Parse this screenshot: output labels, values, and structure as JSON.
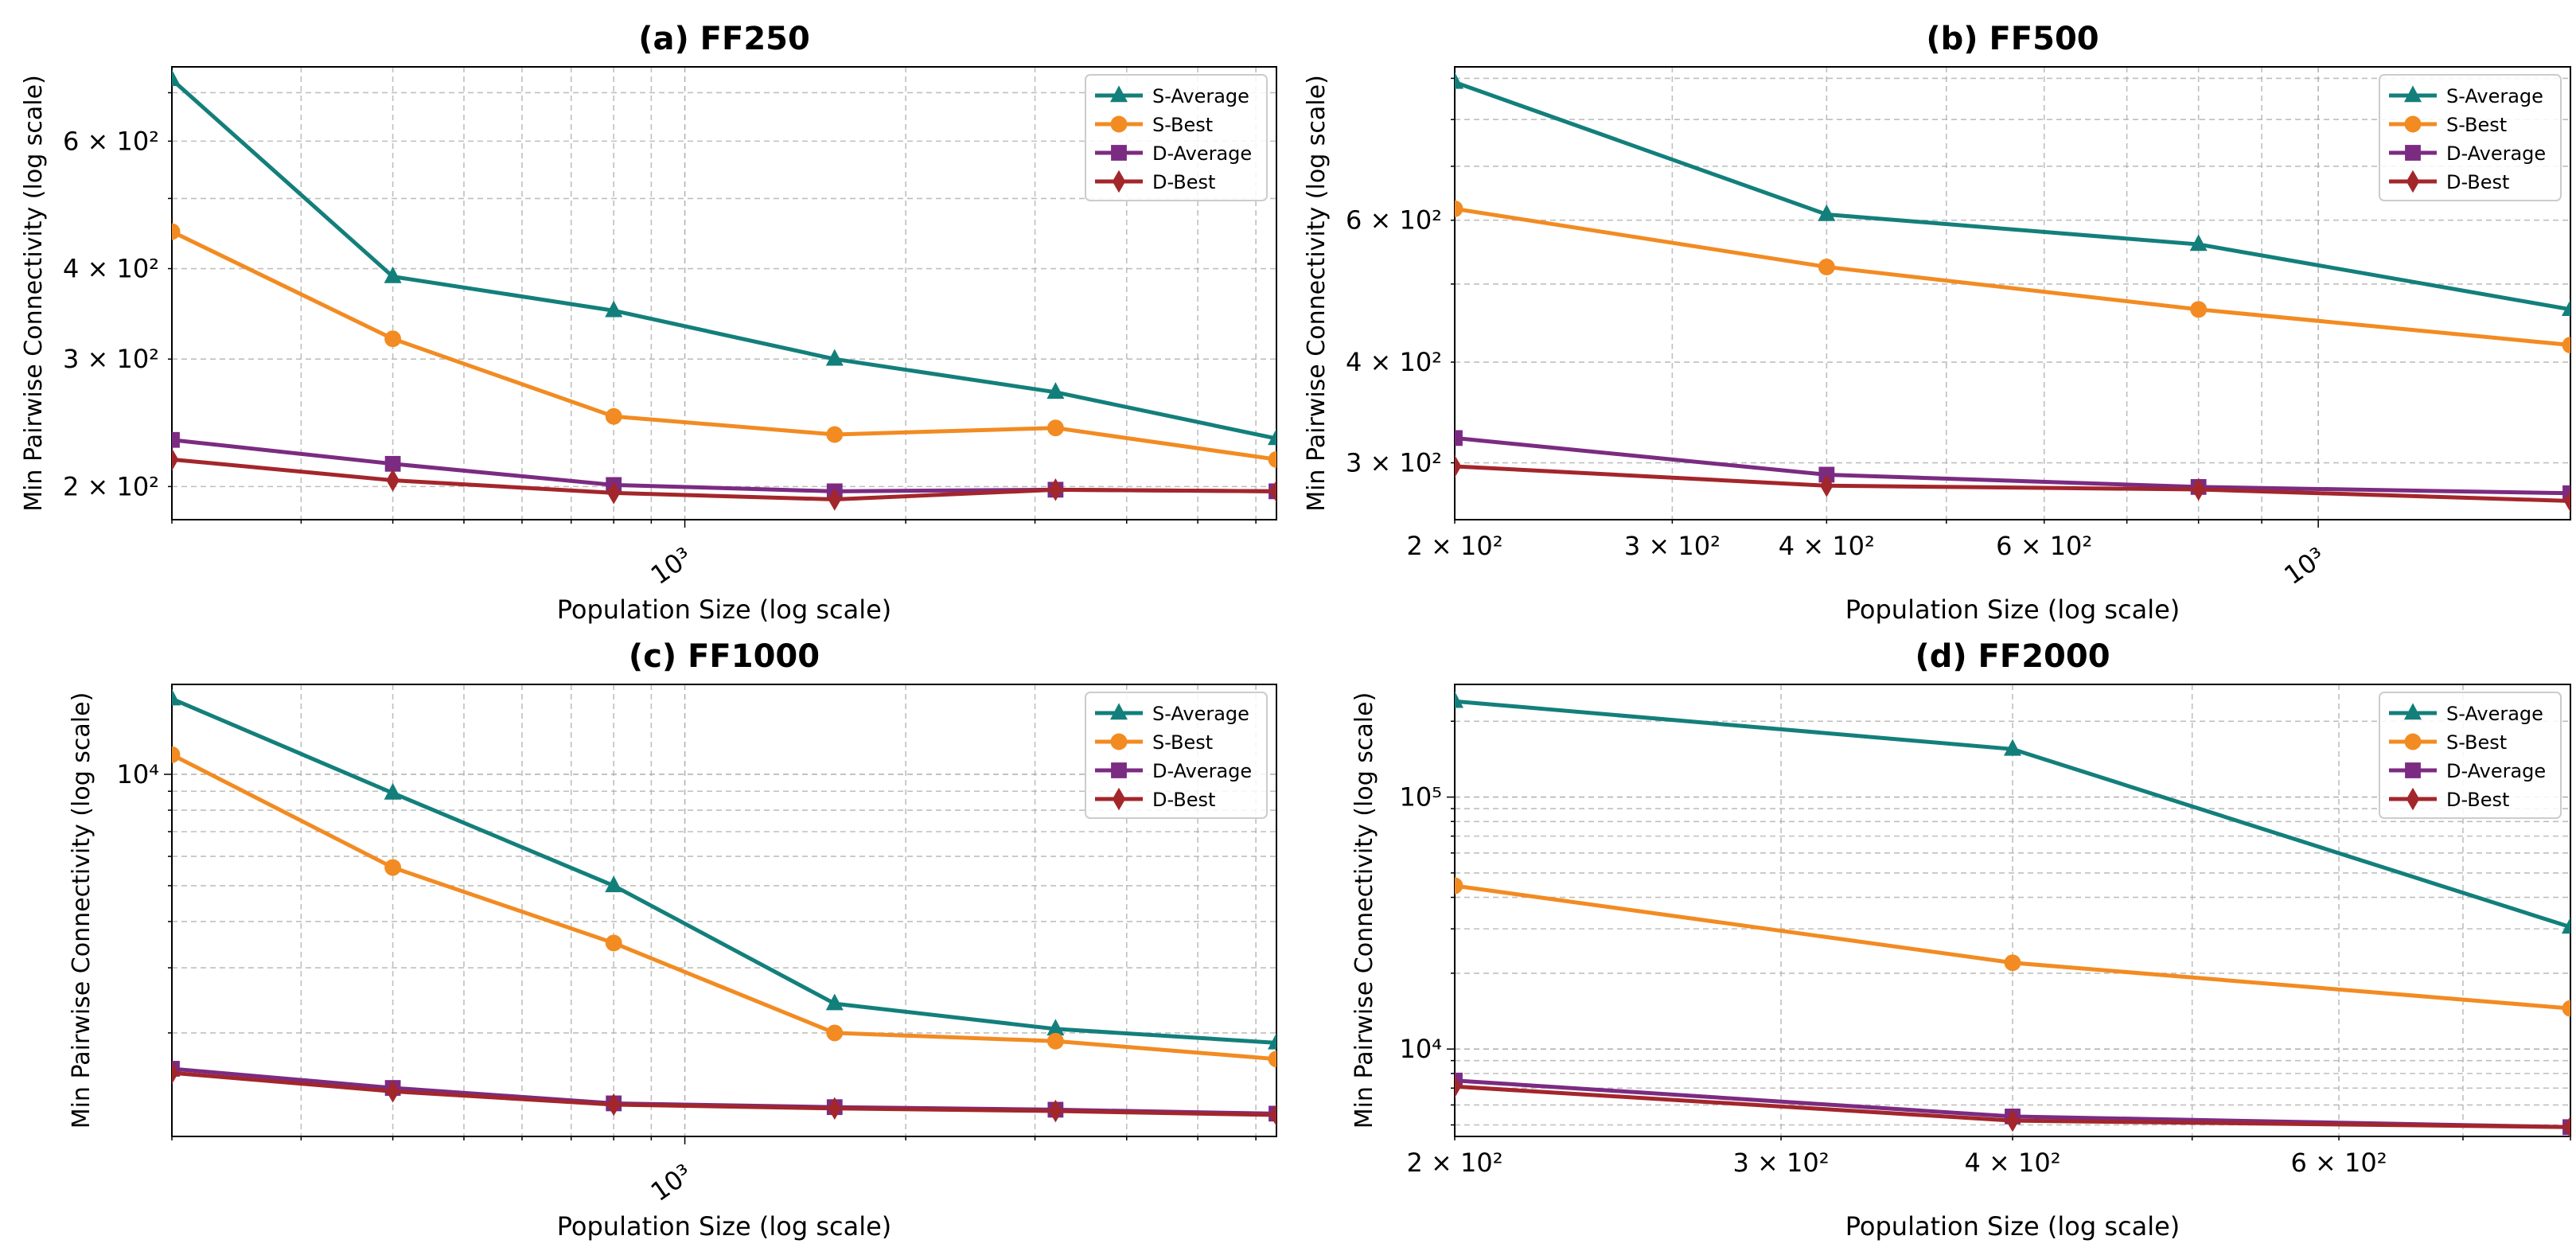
{
  "colors": {
    "s_average": "#137f7b",
    "s_best": "#f28b22",
    "d_average": "#7b2b81",
    "d_best": "#a3262b",
    "grid": "#b0b0b0",
    "axis": "#000000"
  },
  "chart_data": [
    {
      "type": "line",
      "title": "(a) FF250",
      "xlabel": "Population Size (log scale)",
      "ylabel": "Min Pairwise Connectivity (log scale)",
      "xscale": "log",
      "yscale": "log",
      "xlim": [
        200,
        6400
      ],
      "ylim": [
        180,
        760
      ],
      "xticks": [
        {
          "value": 1000,
          "label": "10³"
        }
      ],
      "yticks": [
        {
          "value": 200,
          "label": "2 × 10²"
        },
        {
          "value": 300,
          "label": "3 × 10²"
        },
        {
          "value": 400,
          "label": "4 × 10²"
        },
        {
          "value": 600,
          "label": "6 × 10²"
        }
      ],
      "x": [
        200,
        400,
        800,
        1600,
        3200,
        6400
      ],
      "legend_position": "upper right",
      "grid": true,
      "series": [
        {
          "name": "S-Average",
          "marker": "triangle",
          "color_key": "s_average",
          "values": [
            730,
            390,
            350,
            300,
            270,
            233
          ]
        },
        {
          "name": "S-Best",
          "marker": "circle",
          "color_key": "s_best",
          "values": [
            450,
            320,
            250,
            236,
            241,
            218
          ]
        },
        {
          "name": "D-Average",
          "marker": "square",
          "color_key": "d_average",
          "values": [
            232,
            215,
            201,
            197,
            198,
            197
          ]
        },
        {
          "name": "D-Best",
          "marker": "diamond",
          "color_key": "d_best",
          "values": [
            218,
            204,
            196,
            192,
            198,
            197
          ]
        }
      ]
    },
    {
      "type": "line",
      "title": "(b) FF500",
      "xlabel": "Population Size (log scale)",
      "ylabel": "Min Pairwise Connectivity (log scale)",
      "xscale": "log",
      "yscale": "log",
      "xlim": [
        200,
        1600
      ],
      "ylim": [
        255,
        930
      ],
      "xticks": [
        {
          "value": 200,
          "label": "2 × 10²"
        },
        {
          "value": 300,
          "label": "3 × 10²"
        },
        {
          "value": 400,
          "label": "4 × 10²"
        },
        {
          "value": 600,
          "label": "6 × 10²"
        },
        {
          "value": 1000,
          "label": "10³",
          "rotated": true
        }
      ],
      "yticks": [
        {
          "value": 300,
          "label": "3 × 10²"
        },
        {
          "value": 400,
          "label": "4 × 10²"
        },
        {
          "value": 600,
          "label": "6 × 10²"
        }
      ],
      "x": [
        200,
        400,
        800,
        1600
      ],
      "legend_position": "upper right",
      "grid": true,
      "series": [
        {
          "name": "S-Average",
          "marker": "triangle",
          "color_key": "s_average",
          "values": [
            890,
            610,
            560,
            465
          ]
        },
        {
          "name": "S-Best",
          "marker": "circle",
          "color_key": "s_best",
          "values": [
            620,
            525,
            465,
            420
          ]
        },
        {
          "name": "D-Average",
          "marker": "square",
          "color_key": "d_average",
          "values": [
            322,
            290,
            280,
            275
          ]
        },
        {
          "name": "D-Best",
          "marker": "diamond",
          "color_key": "d_best",
          "values": [
            297,
            281,
            278,
            269
          ]
        }
      ]
    },
    {
      "type": "line",
      "title": "(c) FF1000",
      "xlabel": "Population Size (log scale)",
      "ylabel": "Min Pairwise Connectivity (log scale)",
      "xscale": "log",
      "yscale": "log",
      "xlim": [
        200,
        6400
      ],
      "ylim": [
        1050,
        17500
      ],
      "xticks": [
        {
          "value": 1000,
          "label": "10³"
        }
      ],
      "yticks": [
        {
          "value": 10000,
          "label": "10⁴"
        }
      ],
      "x": [
        200,
        400,
        800,
        1600,
        3200,
        6400
      ],
      "legend_position": "upper right",
      "grid": true,
      "series": [
        {
          "name": "S-Average",
          "marker": "triangle",
          "color_key": "s_average",
          "values": [
            16000,
            8900,
            5000,
            2400,
            2050,
            1880
          ]
        },
        {
          "name": "S-Best",
          "marker": "circle",
          "color_key": "s_best",
          "values": [
            11300,
            5600,
            3500,
            2000,
            1900,
            1700
          ]
        },
        {
          "name": "D-Average",
          "marker": "square",
          "color_key": "d_average",
          "values": [
            1600,
            1420,
            1290,
            1260,
            1240,
            1210
          ]
        },
        {
          "name": "D-Best",
          "marker": "diamond",
          "color_key": "d_best",
          "values": [
            1560,
            1390,
            1280,
            1250,
            1230,
            1200
          ]
        }
      ]
    },
    {
      "type": "line",
      "title": "(d) FF2000",
      "xlabel": "Population Size (log scale)",
      "ylabel": "Min Pairwise Connectivity (log scale)",
      "xscale": "log",
      "yscale": "log",
      "xlim": [
        200,
        800
      ],
      "ylim": [
        4500,
        280000
      ],
      "xticks": [
        {
          "value": 200,
          "label": "2 × 10²"
        },
        {
          "value": 300,
          "label": "3 × 10²"
        },
        {
          "value": 400,
          "label": "4 × 10²"
        },
        {
          "value": 600,
          "label": "6 × 10²"
        }
      ],
      "yticks": [
        {
          "value": 10000,
          "label": "10⁴"
        },
        {
          "value": 100000,
          "label": "10⁵"
        }
      ],
      "x": [
        200,
        400,
        800
      ],
      "legend_position": "upper right",
      "grid": true,
      "series": [
        {
          "name": "S-Average",
          "marker": "triangle",
          "color_key": "s_average",
          "values": [
            240000,
            155000,
            30500
          ]
        },
        {
          "name": "S-Best",
          "marker": "circle",
          "color_key": "s_best",
          "values": [
            44500,
            22000,
            14500
          ]
        },
        {
          "name": "D-Average",
          "marker": "square",
          "color_key": "d_average",
          "values": [
            7500,
            5400,
            4900
          ]
        },
        {
          "name": "D-Best",
          "marker": "diamond",
          "color_key": "d_best",
          "values": [
            7100,
            5200,
            4900
          ]
        }
      ]
    }
  ]
}
